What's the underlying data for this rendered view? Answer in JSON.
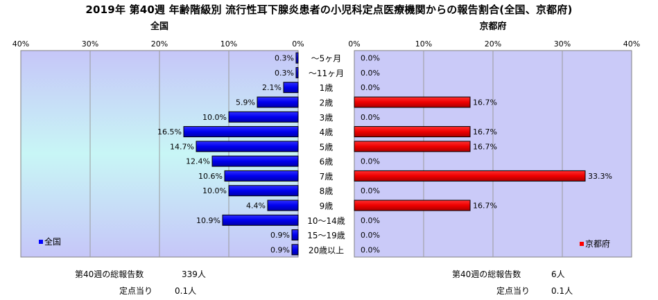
{
  "title": "2019年 第40週 年齢階級別 流行性耳下腺炎患者の小児科定点医療機関からの報告割合(全国、京都府)",
  "chart_data": [
    {
      "type": "bar",
      "orientation": "horizontal",
      "title": "全国",
      "xlim": [
        40,
        0
      ],
      "x_ticks": [
        "40%",
        "30%",
        "20%",
        "10%",
        "0%"
      ],
      "legend": "全国",
      "legend_position": "bottom-left",
      "color": "#0000ff",
      "categories": [
        "～5ヶ月",
        "～11ヶ月",
        "1歳",
        "2歳",
        "3歳",
        "4歳",
        "5歳",
        "6歳",
        "7歳",
        "8歳",
        "9歳",
        "10～14歳",
        "15～19歳",
        "20歳以上"
      ],
      "values": [
        0.3,
        0.3,
        2.1,
        5.9,
        10.0,
        16.5,
        14.7,
        12.4,
        10.6,
        10.0,
        4.4,
        10.9,
        0.9,
        0.9
      ],
      "labels": [
        "0.3%",
        "0.3%",
        "2.1%",
        "5.9%",
        "10.0%",
        "16.5%",
        "14.7%",
        "12.4%",
        "10.6%",
        "10.0%",
        "4.4%",
        "10.9%",
        "0.9%",
        "0.9%"
      ]
    },
    {
      "type": "bar",
      "orientation": "horizontal",
      "title": "京都府",
      "xlim": [
        0,
        40
      ],
      "x_ticks": [
        "0%",
        "10%",
        "20%",
        "30%",
        "40%"
      ],
      "legend": "京都府",
      "legend_position": "bottom-right",
      "color": "#ff0000",
      "categories": [
        "～5ヶ月",
        "～11ヶ月",
        "1歳",
        "2歳",
        "3歳",
        "4歳",
        "5歳",
        "6歳",
        "7歳",
        "8歳",
        "9歳",
        "10～14歳",
        "15～19歳",
        "20歳以上"
      ],
      "values": [
        0.0,
        0.0,
        0.0,
        16.7,
        0.0,
        16.7,
        16.7,
        0.0,
        33.3,
        0.0,
        16.7,
        0.0,
        0.0,
        0.0
      ],
      "labels": [
        "0.0%",
        "0.0%",
        "0.0%",
        "16.7%",
        "0.0%",
        "16.7%",
        "16.7%",
        "0.0%",
        "33.3%",
        "0.0%",
        "16.7%",
        "0.0%",
        "0.0%",
        "0.0%"
      ]
    }
  ],
  "stats": {
    "national": {
      "total_label": "第40週の総報告数",
      "total_value": "339人",
      "per_label": "定点当り",
      "per_value": "0.1人"
    },
    "kyoto": {
      "total_label": "第40週の総報告数",
      "total_value": "6人",
      "per_label": "定点当り",
      "per_value": "0.1人"
    }
  }
}
